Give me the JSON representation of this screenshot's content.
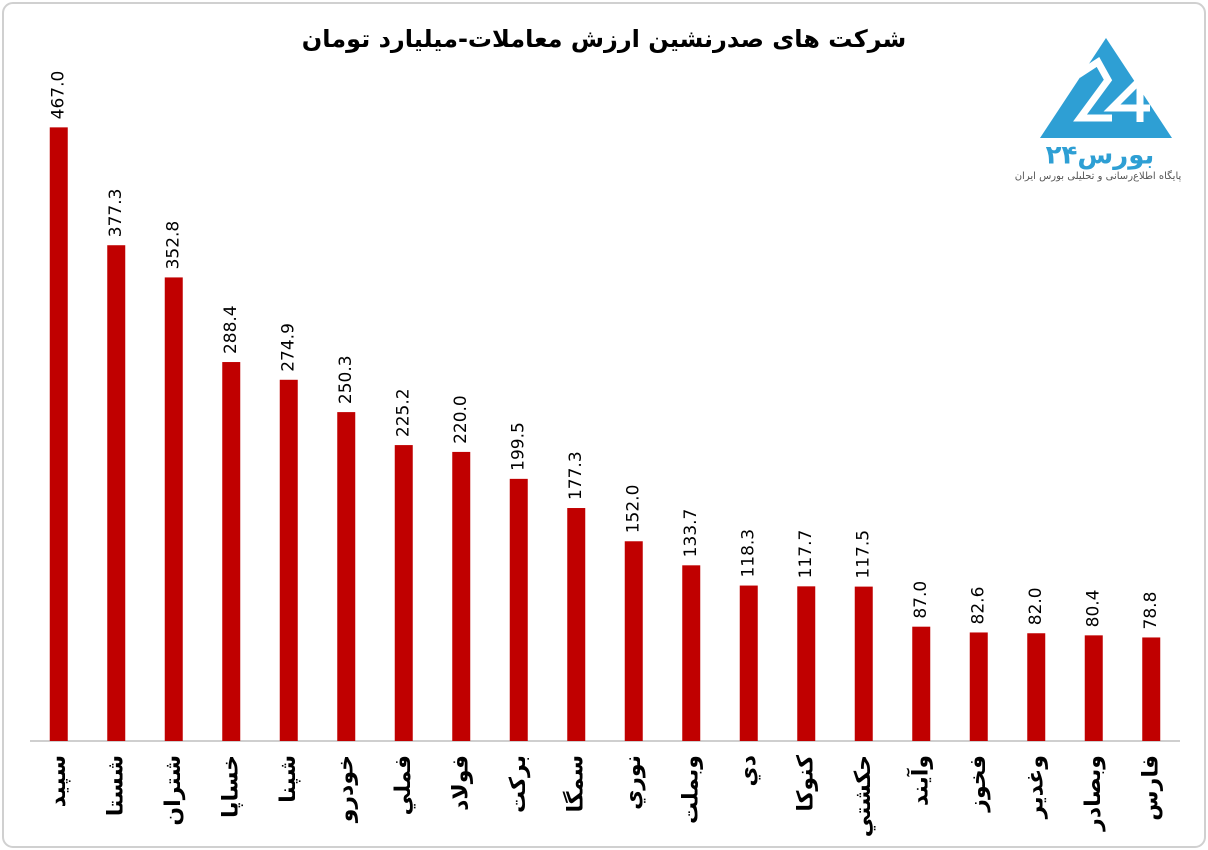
{
  "chart_data": {
    "type": "bar",
    "title": "شرکت های صدرنشین ارزش معاملات-میلیارد تومان",
    "categories": [
      "سپید",
      "شستا",
      "شتران",
      "خساپا",
      "شپنا",
      "خودرو",
      "فملي",
      "فولاد",
      "برکت",
      "سمگا",
      "نوري",
      "وبملت",
      "دي",
      "کنوکا",
      "حکشتي",
      "وآيند",
      "فخوز",
      "وغدير",
      "وبصادر",
      "فارس"
    ],
    "values": [
      467.0,
      377.3,
      352.8,
      288.4,
      274.9,
      250.3,
      225.2,
      220.0,
      199.5,
      177.3,
      152.0,
      133.7,
      118.3,
      117.7,
      117.5,
      87.0,
      82.6,
      82.0,
      80.4,
      78.8
    ],
    "value_labels": [
      "467.0",
      "377.3",
      "352.8",
      "288.4",
      "274.9",
      "250.3",
      "225.2",
      "220.0",
      "199.5",
      "177.3",
      "152.0",
      "133.7",
      "118.3",
      "117.7",
      "117.5",
      "87.0",
      "82.6",
      "82.0",
      "80.4",
      "78.8"
    ],
    "color": "#c00000",
    "ylim": [
      0,
      500
    ]
  },
  "logo": {
    "name": "بورس۲۴",
    "tagline": "پایگاه اطلاع‌رسانی و تحلیلی بورس ایران"
  }
}
